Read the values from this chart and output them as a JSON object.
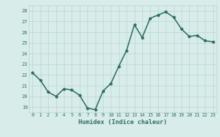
{
  "x": [
    0,
    1,
    2,
    3,
    4,
    5,
    6,
    7,
    8,
    9,
    10,
    11,
    12,
    13,
    14,
    15,
    16,
    17,
    18,
    19,
    20,
    21,
    22,
    23
  ],
  "y": [
    22.2,
    21.5,
    20.4,
    20.0,
    20.7,
    20.6,
    20.1,
    18.9,
    18.75,
    20.5,
    21.2,
    22.8,
    24.3,
    26.7,
    25.5,
    27.3,
    27.6,
    27.9,
    27.4,
    26.3,
    25.6,
    25.7,
    25.2,
    25.1
  ],
  "line_color": "#2d6e63",
  "marker": "o",
  "marker_size": 2.2,
  "bg_color": "#d8ecea",
  "grid_color": "#b8d4d0",
  "tick_color": "#2d6e63",
  "label_color": "#2d6e63",
  "xlabel": "Humidex (Indice chaleur)",
  "ylim": [
    18.5,
    28.5
  ],
  "yticks": [
    19,
    20,
    21,
    22,
    23,
    24,
    25,
    26,
    27,
    28
  ],
  "xticks": [
    0,
    1,
    2,
    3,
    4,
    5,
    6,
    7,
    8,
    9,
    10,
    11,
    12,
    13,
    14,
    15,
    16,
    17,
    18,
    19,
    20,
    21,
    22,
    23
  ],
  "xtick_labels": [
    "0",
    "1",
    "2",
    "3",
    "4",
    "5",
    "6",
    "7",
    "8",
    "9",
    "10",
    "11",
    "12",
    "13",
    "14",
    "15",
    "16",
    "17",
    "18",
    "19",
    "20",
    "21",
    "22",
    "23"
  ],
  "line_width": 1.2
}
